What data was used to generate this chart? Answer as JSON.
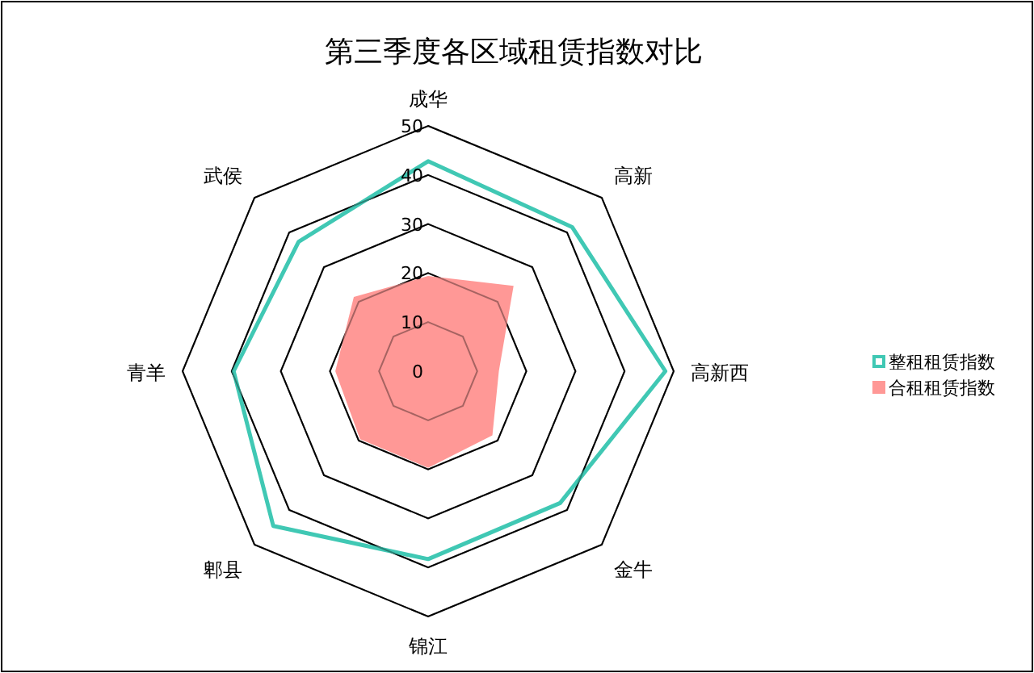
{
  "chart_data": {
    "type": "radar",
    "title": "第三季度各区域租赁指数对比",
    "categories": [
      "成华",
      "高新",
      "高新西",
      "金牛",
      "锦江",
      "郫县",
      "青羊",
      "武侯"
    ],
    "ylim": [
      0,
      50
    ],
    "yticks": [
      0,
      10,
      20,
      30,
      40,
      50
    ],
    "grid": true,
    "legend": "right",
    "series": [
      {
        "name": "整租租赁指数",
        "type": "radar",
        "color": "#40c8b4",
        "values": [
          42.8,
          41.5,
          48.3,
          38.0,
          38.3,
          44.6,
          39.6,
          37.3
        ]
      },
      {
        "name": "合租租赁指数",
        "type": "area",
        "color": "#ff9896",
        "values": [
          19.4,
          24.6,
          14.4,
          18.5,
          19.7,
          19.6,
          18.9,
          21.4
        ]
      }
    ]
  }
}
